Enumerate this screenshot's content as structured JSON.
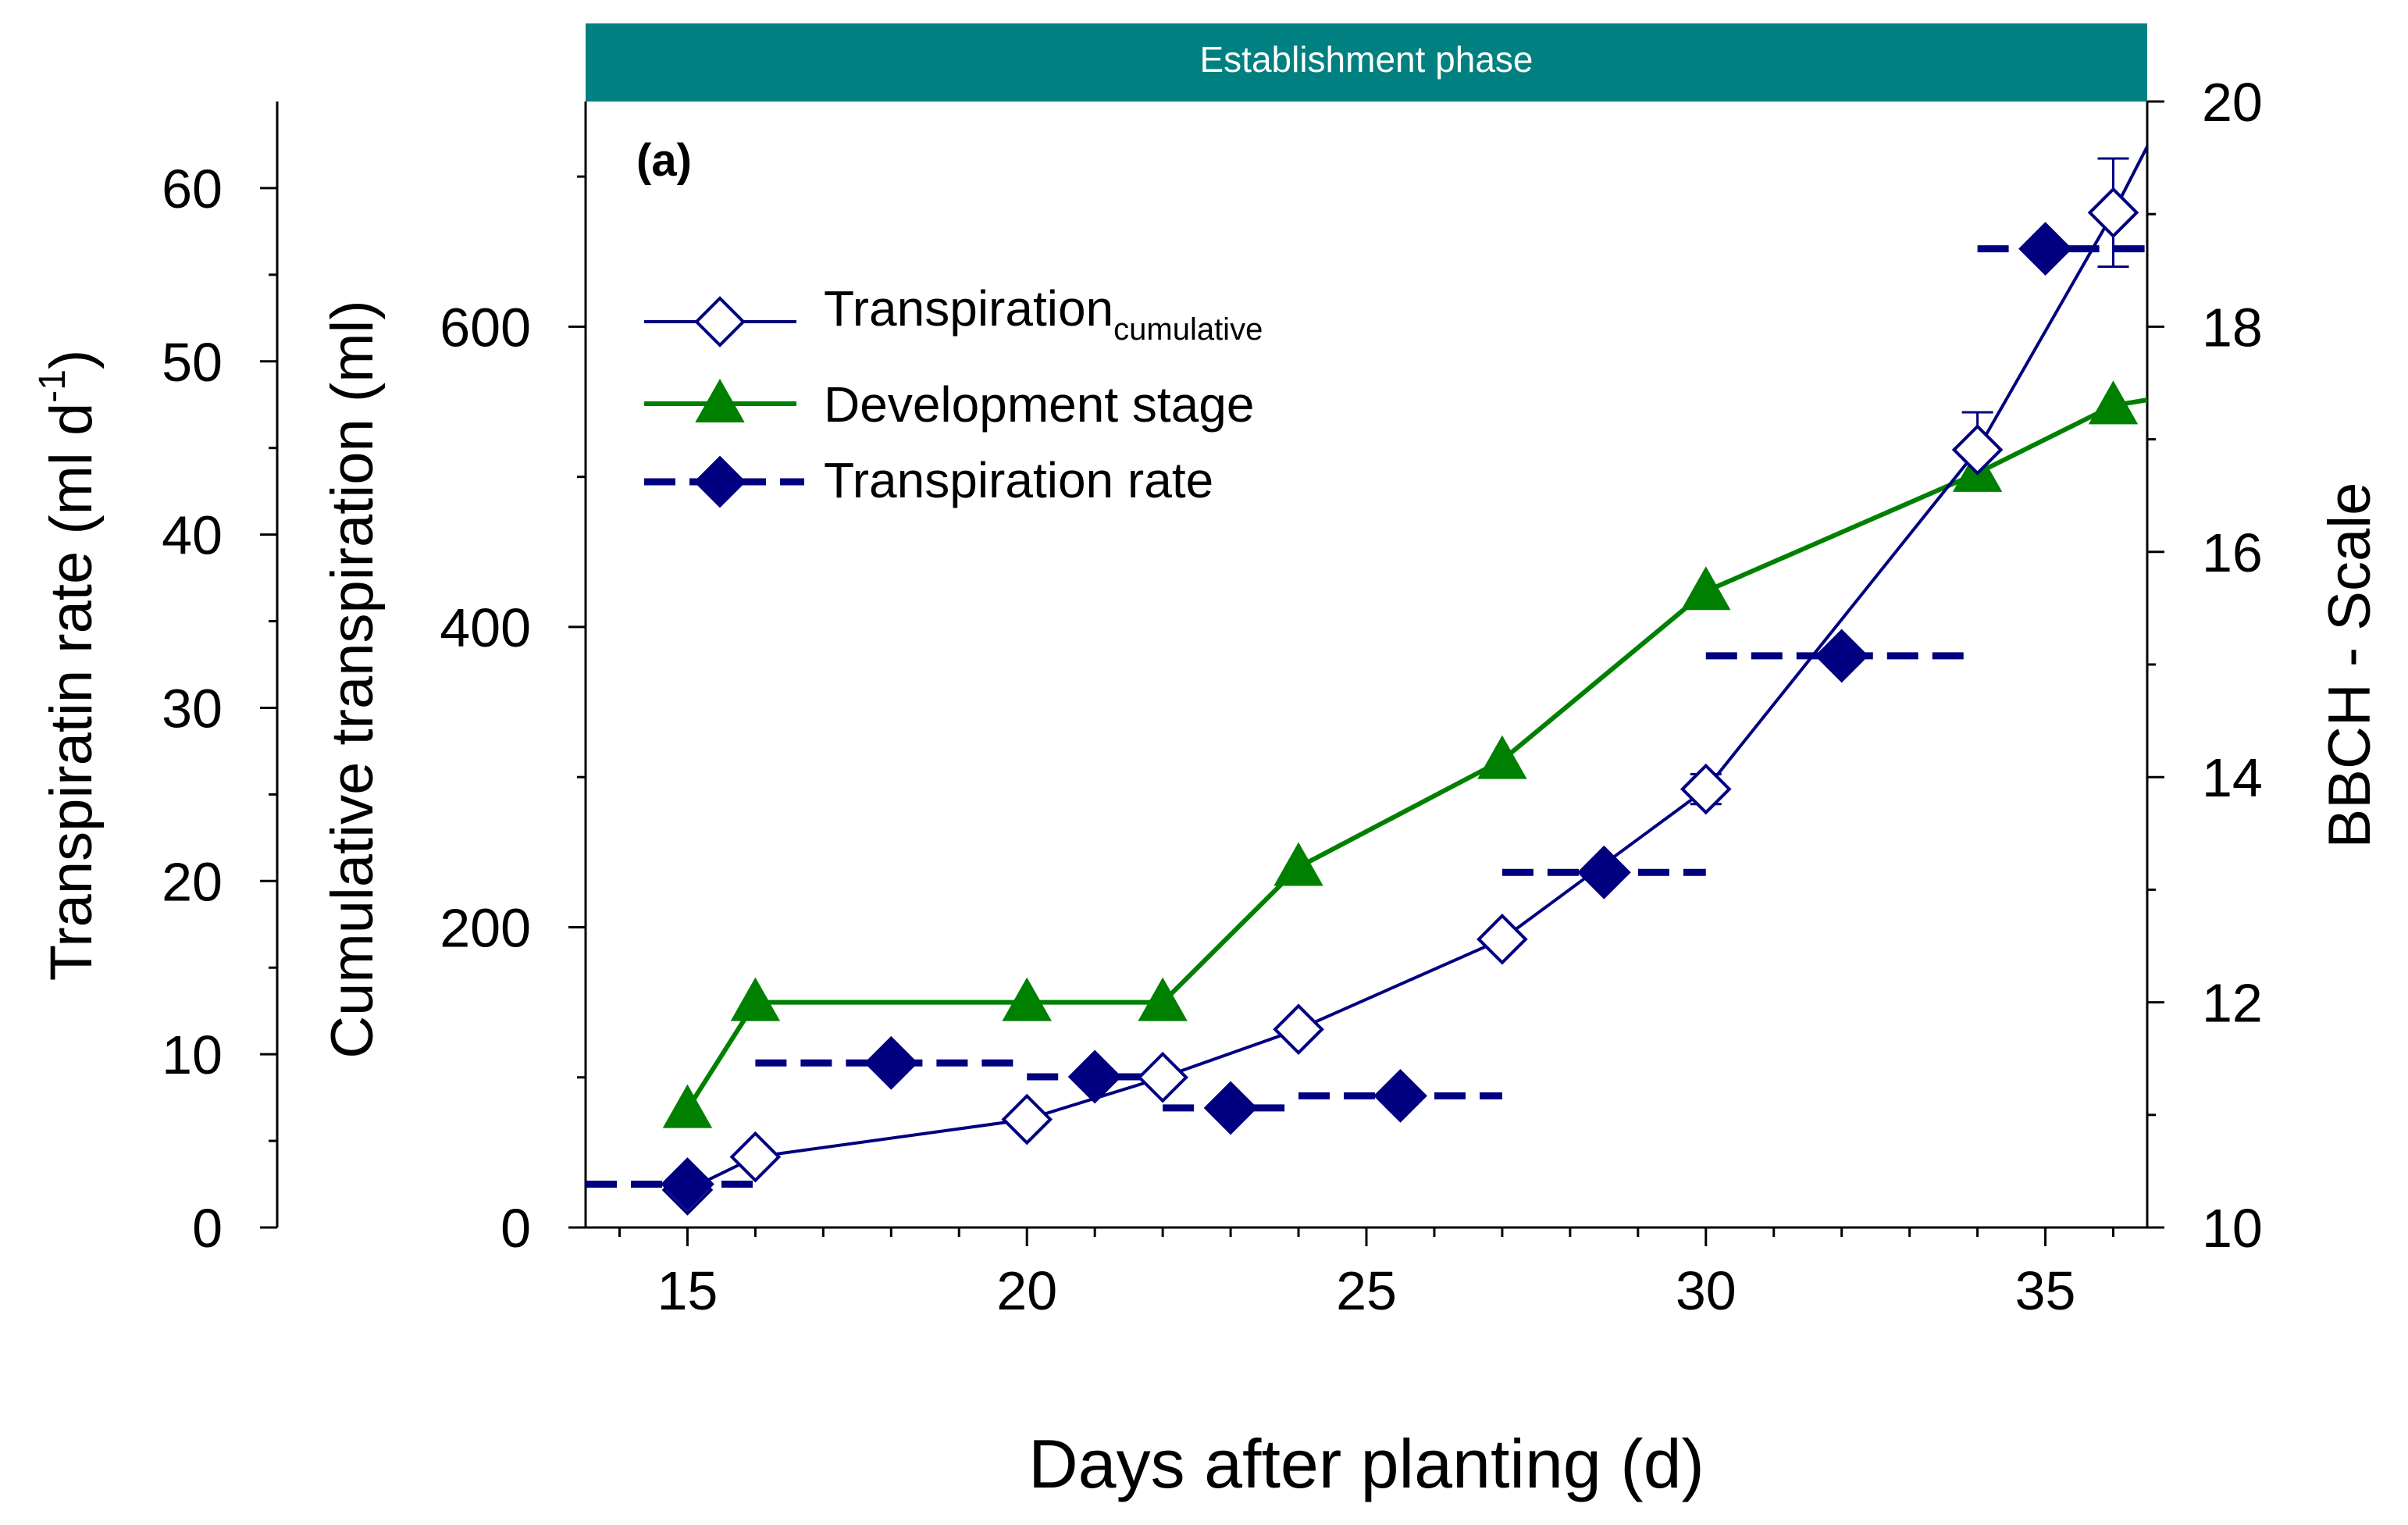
{
  "chart_data": {
    "type": "line",
    "panel_label": "(a)",
    "banner": {
      "label": "Establishment phase",
      "color": "#008080"
    },
    "xlabel": "Days after planting (d)",
    "xlim": [
      13.5,
      36.5
    ],
    "x_ticks": [
      15,
      20,
      25,
      30,
      35
    ],
    "axes": {
      "rate": {
        "label": "Transpiratin rate (ml d-1)",
        "label_base": "Transpiratin rate (ml d",
        "label_sup": "-1",
        "label_end": ")",
        "lim": [
          0,
          65
        ],
        "ticks": [
          0,
          10,
          20,
          30,
          40,
          50,
          60
        ]
      },
      "cumulative": {
        "label": "Cumulative transpiration (ml)",
        "lim": [
          0,
          750
        ],
        "ticks": [
          0,
          200,
          400,
          600
        ]
      },
      "bbch": {
        "label": "BBCH - Scale",
        "lim": [
          10,
          20
        ],
        "ticks": [
          10,
          12,
          14,
          16,
          18,
          20
        ]
      }
    },
    "series": [
      {
        "name": "Transpiration cumulative",
        "legend_base": "Transpiration",
        "legend_sub": "cumulative",
        "axis": "cumulative",
        "color": "#000080",
        "marker": "open-diamond",
        "points": [
          {
            "x": 15,
            "y": 25
          },
          {
            "x": 16,
            "y": 47
          },
          {
            "x": 20,
            "y": 72
          },
          {
            "x": 22,
            "y": 100
          },
          {
            "x": 24,
            "y": 132
          },
          {
            "x": 27,
            "y": 192
          },
          {
            "x": 30,
            "y": 292,
            "err": 10
          },
          {
            "x": 34,
            "y": 518,
            "err": 25
          },
          {
            "x": 36,
            "y": 676,
            "err": 36
          }
        ],
        "line_end": {
          "x": 36.5,
          "y": 720
        }
      },
      {
        "name": "Development stage",
        "axis": "bbch",
        "color": "#008000",
        "marker": "filled-triangle",
        "points": [
          {
            "x": 15,
            "y": 11.05
          },
          {
            "x": 16,
            "y": 12.0
          },
          {
            "x": 20,
            "y": 12.0
          },
          {
            "x": 22,
            "y": 12.0
          },
          {
            "x": 24,
            "y": 13.2
          },
          {
            "x": 27,
            "y": 14.15
          },
          {
            "x": 30,
            "y": 15.65
          },
          {
            "x": 34,
            "y": 16.7
          },
          {
            "x": 36,
            "y": 17.3
          }
        ],
        "line_end": {
          "x": 36.5,
          "y": 17.35
        }
      },
      {
        "name": "Transpiration rate",
        "axis": "rate",
        "color": "#000080",
        "marker": "filled-diamond",
        "points": [
          {
            "x": 15,
            "y": 2.5,
            "x0": 13.5,
            "x1": 16
          },
          {
            "x": 18,
            "y": 9.5,
            "x0": 16,
            "x1": 20
          },
          {
            "x": 21,
            "y": 8.7,
            "x0": 20,
            "x1": 22
          },
          {
            "x": 23,
            "y": 6.9,
            "x0": 22,
            "x1": 24
          },
          {
            "x": 25.5,
            "y": 7.6,
            "x0": 24,
            "x1": 27
          },
          {
            "x": 28.5,
            "y": 20.5,
            "x0": 27,
            "x1": 30
          },
          {
            "x": 32,
            "y": 33.0,
            "x0": 30,
            "x1": 34
          },
          {
            "x": 35,
            "y": 56.5,
            "x0": 34,
            "x1": 36.5
          }
        ]
      }
    ]
  }
}
